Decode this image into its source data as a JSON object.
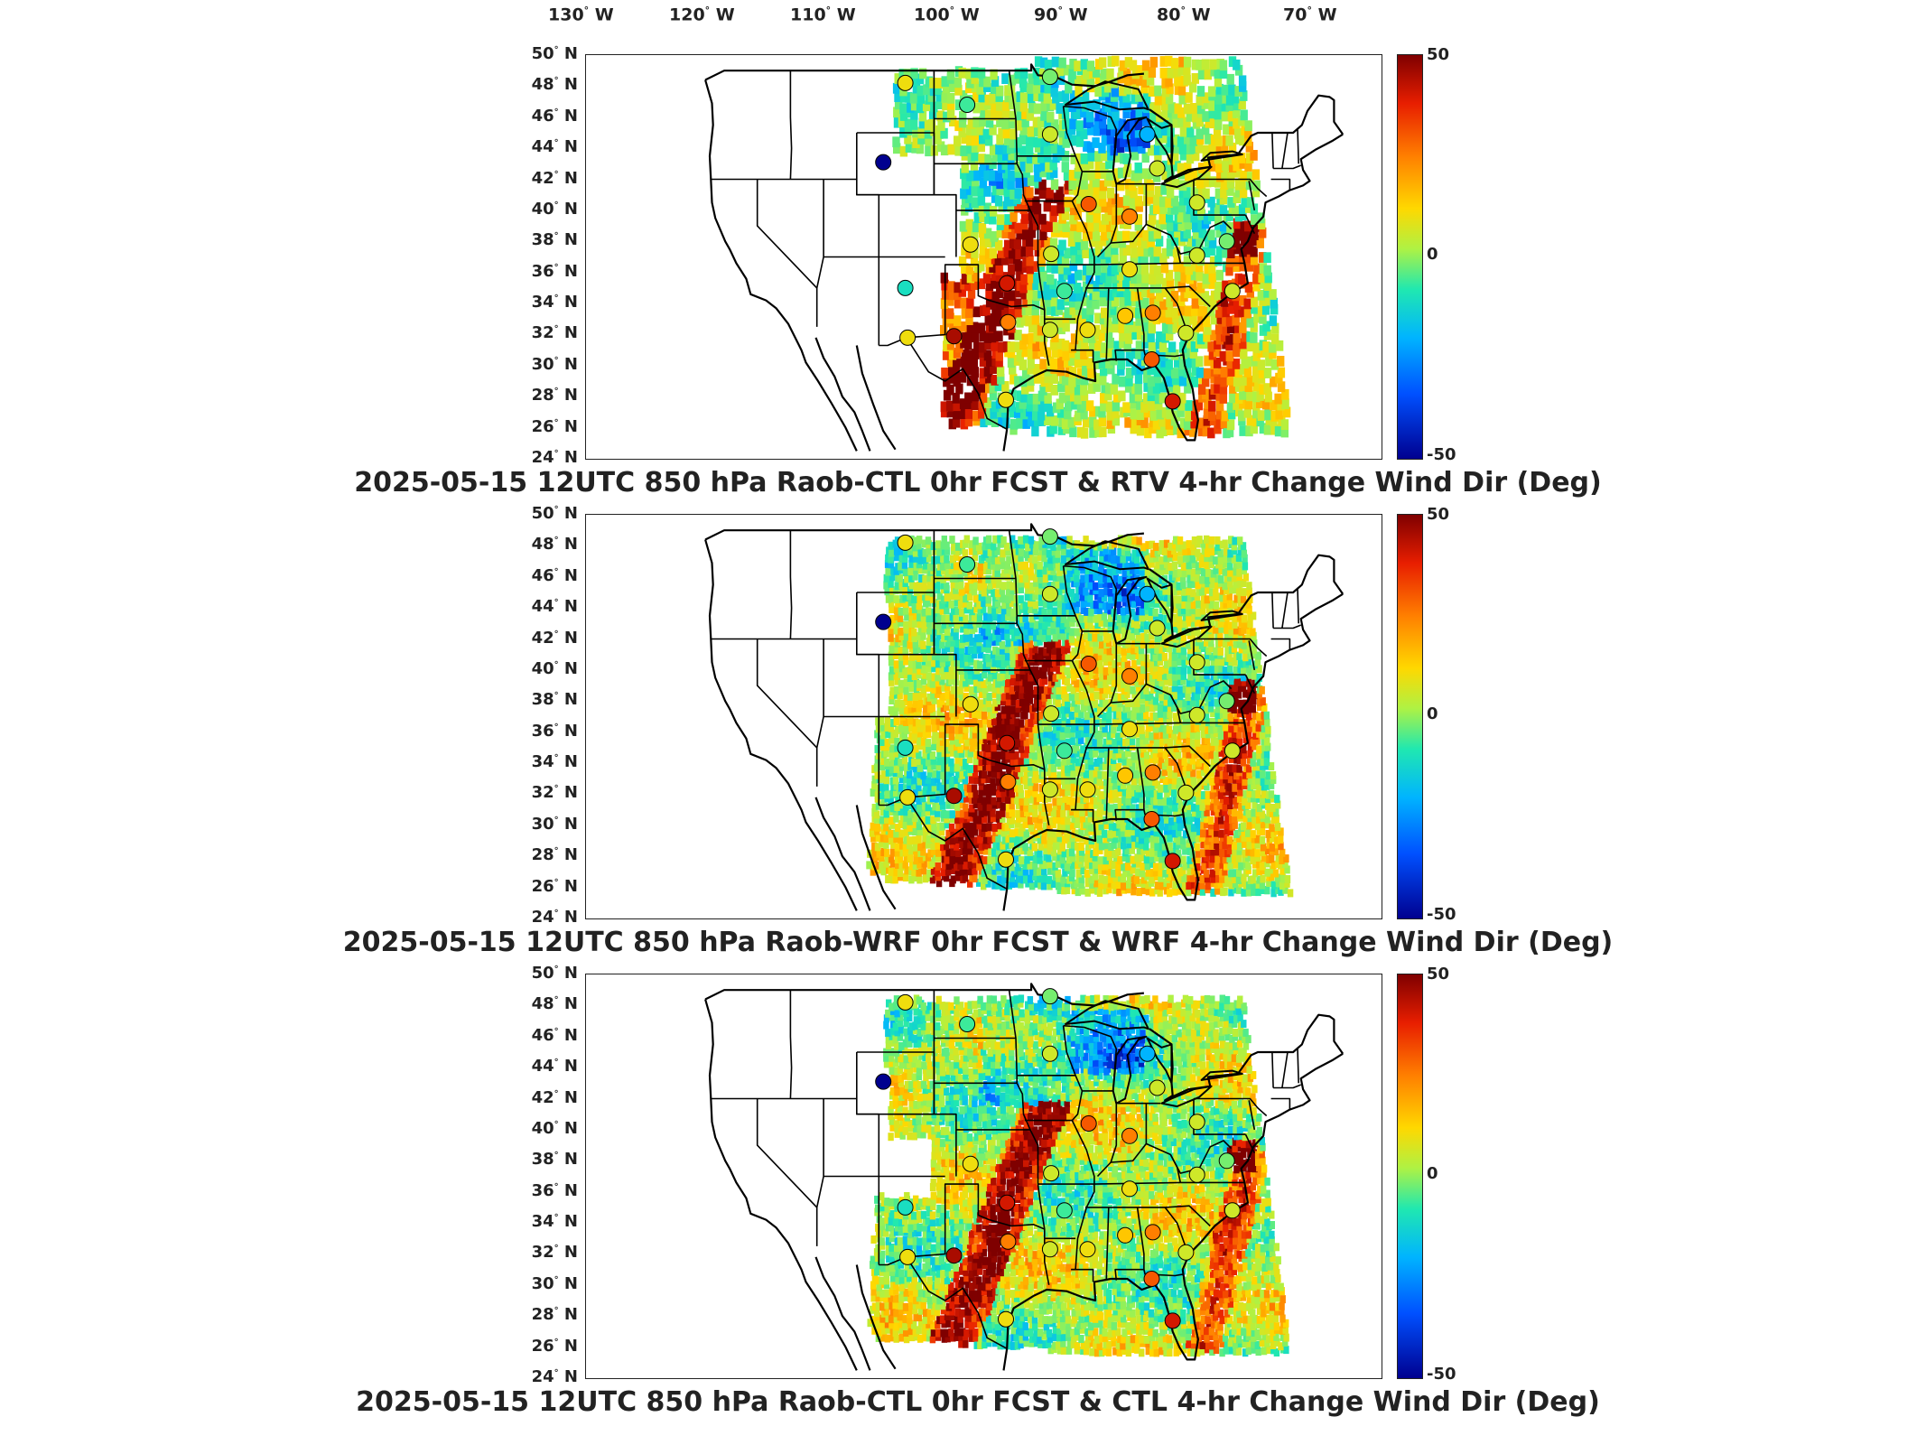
{
  "longitude_labels": [
    {
      "deg": "130",
      "hemi": "W"
    },
    {
      "deg": "120",
      "hemi": "W"
    },
    {
      "deg": "110",
      "hemi": "W"
    },
    {
      "deg": "100",
      "hemi": "W"
    },
    {
      "deg": "90",
      "hemi": "W"
    },
    {
      "deg": "80",
      "hemi": "W"
    },
    {
      "deg": "70",
      "hemi": "W"
    }
  ],
  "latitude_labels": [
    {
      "deg": "50",
      "hemi": "N"
    },
    {
      "deg": "48",
      "hemi": "N"
    },
    {
      "deg": "46",
      "hemi": "N"
    },
    {
      "deg": "44",
      "hemi": "N"
    },
    {
      "deg": "42",
      "hemi": "N"
    },
    {
      "deg": "40",
      "hemi": "N"
    },
    {
      "deg": "38",
      "hemi": "N"
    },
    {
      "deg": "36",
      "hemi": "N"
    },
    {
      "deg": "34",
      "hemi": "N"
    },
    {
      "deg": "32",
      "hemi": "N"
    },
    {
      "deg": "30",
      "hemi": "N"
    },
    {
      "deg": "28",
      "hemi": "N"
    },
    {
      "deg": "26",
      "hemi": "N"
    },
    {
      "deg": "24",
      "hemi": "N"
    }
  ],
  "colorbar": {
    "max": "50",
    "mid": "0",
    "min": "-50"
  },
  "colorscale": [
    "#00008f",
    "#0050ff",
    "#00b4ff",
    "#20e8b0",
    "#aef244",
    "#ffd800",
    "#ff7f00",
    "#e81e00",
    "#7f0000"
  ],
  "panels": [
    {
      "title": "2025-05-15 12UTC 850 hPa Raob-CTL 0hr FCST & RTV 4-hr Change Wind Dir (Deg)",
      "coverage": "partial"
    },
    {
      "title": "2025-05-15 12UTC 850 hPa Raob-WRF 0hr FCST & WRF 4-hr Change Wind Dir (Deg)",
      "coverage": "full"
    },
    {
      "title": "2025-05-15 12UTC 850 hPa Raob-CTL 0hr FCST & CTL 4-hr Change Wind Dir (Deg)",
      "coverage": "full"
    }
  ],
  "raob_stations": [
    {
      "lon": -106.6,
      "lat": 48.2,
      "value": 10
    },
    {
      "lon": -101.0,
      "lat": 46.8,
      "value": -10
    },
    {
      "lon": -93.5,
      "lat": 48.6,
      "value": -5
    },
    {
      "lon": -108.6,
      "lat": 43.1,
      "value": -50
    },
    {
      "lon": -93.5,
      "lat": 44.9,
      "value": 5
    },
    {
      "lon": -84.7,
      "lat": 44.9,
      "value": -25
    },
    {
      "lon": -83.8,
      "lat": 42.7,
      "value": 5
    },
    {
      "lon": -90.0,
      "lat": 40.4,
      "value": 30
    },
    {
      "lon": -86.3,
      "lat": 39.6,
      "value": 25
    },
    {
      "lon": -80.2,
      "lat": 40.5,
      "value": 5
    },
    {
      "lon": -100.7,
      "lat": 37.8,
      "value": 10
    },
    {
      "lon": -93.4,
      "lat": 37.2,
      "value": 5
    },
    {
      "lon": -77.5,
      "lat": 38.0,
      "value": -5
    },
    {
      "lon": -106.6,
      "lat": 35.0,
      "value": -15
    },
    {
      "lon": -97.4,
      "lat": 35.3,
      "value": 40
    },
    {
      "lon": -92.2,
      "lat": 34.8,
      "value": -10
    },
    {
      "lon": -86.3,
      "lat": 36.2,
      "value": 10
    },
    {
      "lon": -80.2,
      "lat": 37.1,
      "value": 5
    },
    {
      "lon": -77.0,
      "lat": 34.8,
      "value": 5
    },
    {
      "lon": -106.4,
      "lat": 31.8,
      "value": 10
    },
    {
      "lon": -102.2,
      "lat": 31.9,
      "value": 45
    },
    {
      "lon": -97.3,
      "lat": 32.8,
      "value": 25
    },
    {
      "lon": -93.5,
      "lat": 32.3,
      "value": 5
    },
    {
      "lon": -90.1,
      "lat": 32.3,
      "value": 10
    },
    {
      "lon": -86.7,
      "lat": 33.2,
      "value": 15
    },
    {
      "lon": -84.2,
      "lat": 33.4,
      "value": 25
    },
    {
      "lon": -81.2,
      "lat": 32.1,
      "value": 5
    },
    {
      "lon": -84.3,
      "lat": 30.4,
      "value": 30
    },
    {
      "lon": -97.5,
      "lat": 27.8,
      "value": 10
    },
    {
      "lon": -82.4,
      "lat": 27.7,
      "value": 40
    }
  ]
}
